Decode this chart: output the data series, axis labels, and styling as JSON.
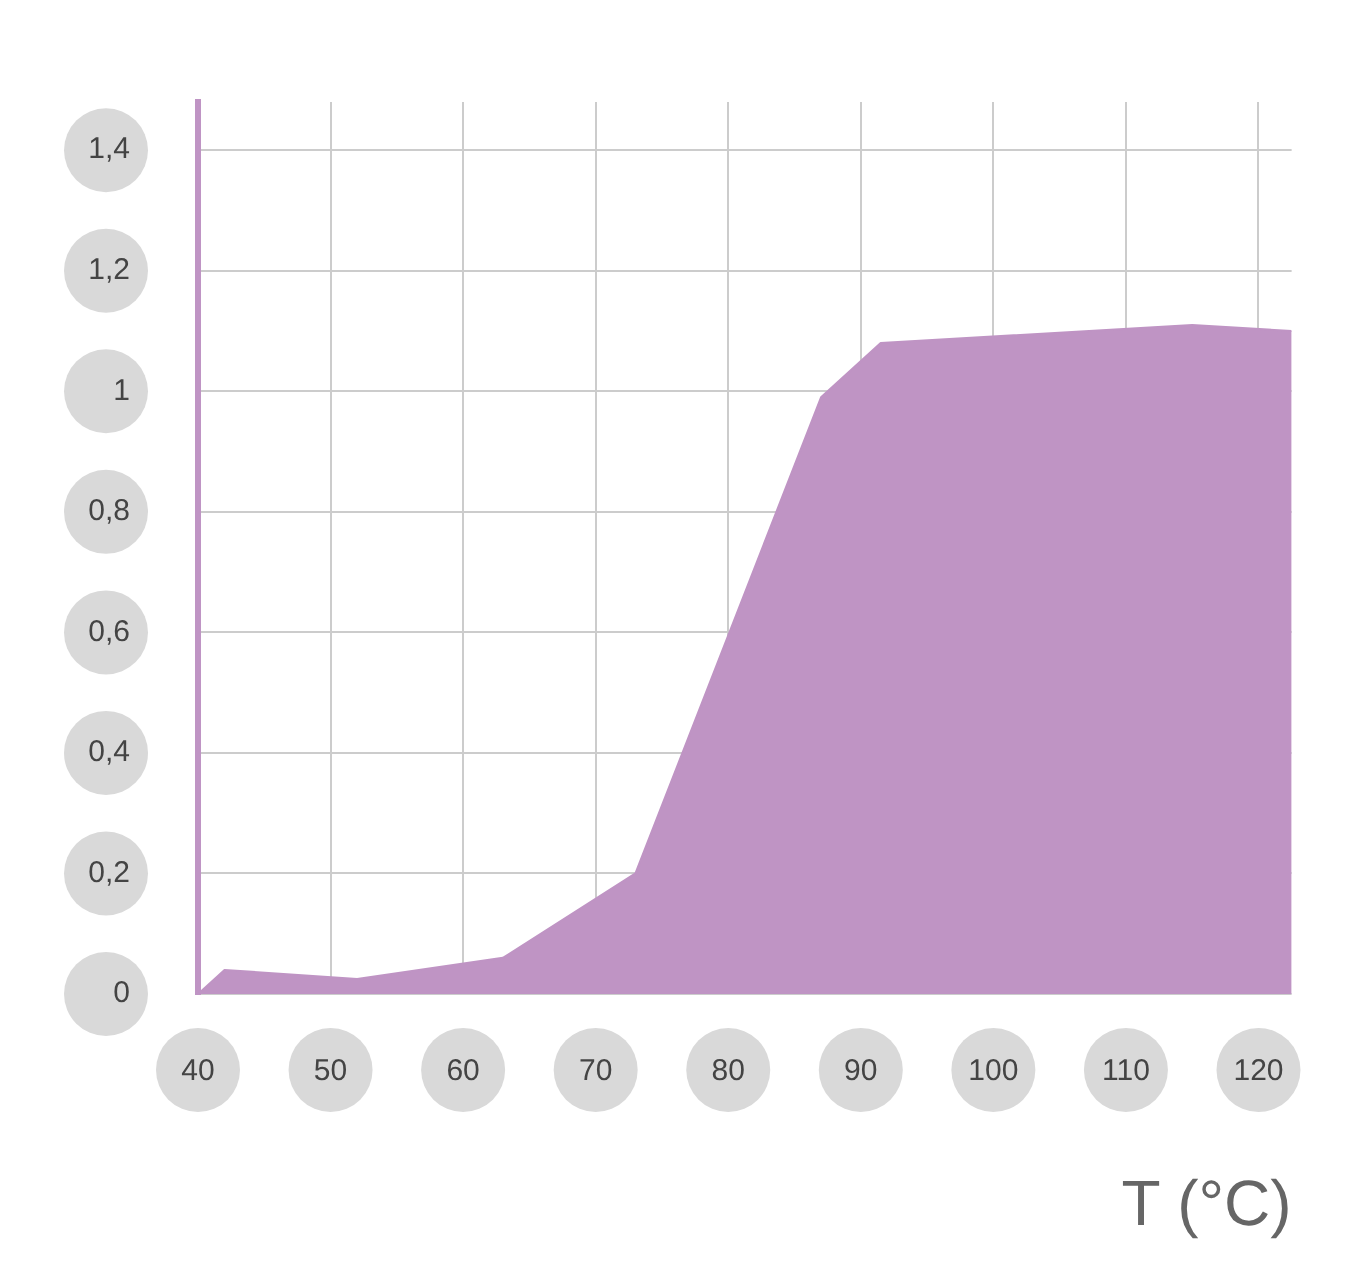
{
  "chart_data": {
    "type": "area",
    "xlabel": "T (°C)",
    "x": [
      40,
      42,
      52,
      63,
      73,
      87,
      91.5,
      115,
      122.5
    ],
    "series": [
      {
        "color": "#bf94c4",
        "values": [
          0,
          0.04,
          0.025,
          0.06,
          0.2,
          0.99,
          1.08,
          1.11,
          1.1
        ]
      }
    ],
    "xlim": [
      40,
      122.5
    ],
    "ylim": [
      0,
      1.48
    ],
    "xticks": [
      40,
      50,
      60,
      70,
      80,
      90,
      100,
      110,
      120
    ],
    "yticks": [
      0,
      {
        "value": 0.2,
        "label": "0,2"
      },
      {
        "value": 0.4,
        "label": "0,4"
      },
      {
        "value": 0.6,
        "label": "0,6"
      },
      {
        "value": 0.8,
        "label": "0,8"
      },
      1,
      {
        "value": 1.2,
        "label": "1,2"
      },
      {
        "value": 1.4,
        "label": "1,4"
      }
    ],
    "grid": true,
    "marker": "none",
    "legend": false
  }
}
